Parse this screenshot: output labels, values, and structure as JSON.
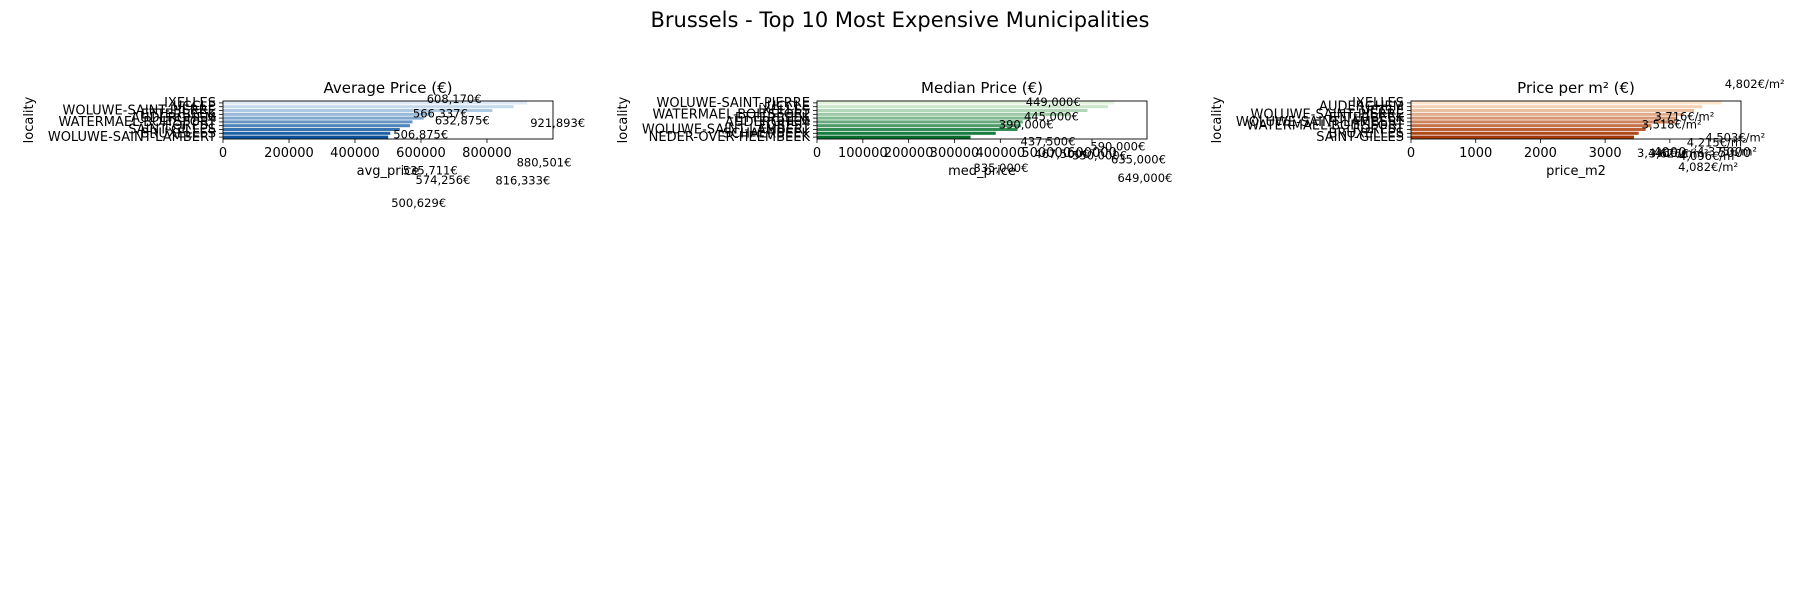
{
  "figure": {
    "suptitle": "Brussels - Top 10 Most Expensive Municipalities"
  },
  "chart_data": [
    {
      "type": "bar",
      "orientation": "horizontal",
      "title": "Average Price (€)",
      "xlabel": "avg_price",
      "ylabel": "locality",
      "xlim": [
        0,
        1000000
      ],
      "xticks": [
        "0",
        "200000",
        "400000",
        "600000",
        "800000"
      ],
      "palette": [
        "#deebf7",
        "#08519c"
      ],
      "grid": false,
      "categories": [
        "IXELLES",
        "UCCLE",
        "WOLUWE-SAINT-PIERRE",
        "ETTERBEEK",
        "AUDERGHEM",
        "WATERMAEL-BOITSFORT",
        "FOREST",
        "SAINT-GILLES",
        "BRUXELLES",
        "WOLUWE-SAINT-LAMBERT"
      ],
      "values": [
        921893,
        880501,
        816333,
        632875,
        608170,
        574256,
        566337,
        535711,
        506875,
        500629
      ],
      "value_labels": [
        "921,893€",
        "880,501€",
        "816,333€",
        "632,875€",
        "608,170€",
        "574,256€",
        "566,337€",
        "535,711€",
        "506,875€",
        "500,629€"
      ]
    },
    {
      "type": "bar",
      "orientation": "horizontal",
      "title": "Median Price (€)",
      "xlabel": "med_price",
      "ylabel": "locality",
      "xlim": [
        0,
        720000
      ],
      "xticks": [
        "0",
        "100000",
        "200000",
        "300000",
        "400000",
        "500000",
        "600000"
      ],
      "palette": [
        "#e5f5e0",
        "#006d2c"
      ],
      "grid": false,
      "categories": [
        "WOLUWE-SAINT-PIERRE",
        "UCCLE",
        "IXELLES",
        "WATERMAEL-BOITSFORT",
        "ETTERBEEK",
        "AUDERGHEM",
        "FOREST",
        "WOLUWE-SAINT-LAMBERT",
        "SCHAERBEEK",
        "NEDER-OVER-HEEMBEEK"
      ],
      "values": [
        649000,
        635000,
        590000,
        550000,
        467500,
        449000,
        445000,
        437500,
        390000,
        335000
      ],
      "value_labels": [
        "649,000€",
        "635,000€",
        "590,000€",
        "550,000€",
        "467,500€",
        "449,000€",
        "445,000€",
        "437,500€",
        "390,000€",
        "335,000€"
      ]
    },
    {
      "type": "bar",
      "orientation": "horizontal",
      "title": "Price per m² (€)",
      "xlabel": "price_m2",
      "ylabel": "locality",
      "xlim": [
        0,
        5100
      ],
      "xticks": [
        "0",
        "1000",
        "2000",
        "3000",
        "4000",
        "5000"
      ],
      "palette": [
        "#fee6ce",
        "#a63603"
      ],
      "grid": false,
      "categories": [
        "IXELLES",
        "AUDERGHEM",
        "UCCLE",
        "WOLUWE-SAINT-PIERRE",
        "ETTERBEEK",
        "WOLUWE-SAINT-LAMBERT",
        "WATERMAEL-BOITSFORT",
        "FOREST",
        "BRUXELLES",
        "SAINT-GILLES"
      ],
      "values": [
        4802,
        4503,
        4375,
        4215,
        4096,
        4082,
        3716,
        3626,
        3518,
        3446
      ],
      "value_labels": [
        "4,802€/m²",
        "4,503€/m²",
        "4,375€/m²",
        "4,215€/m²",
        "4,096€/m²",
        "4,082€/m²",
        "3,716€/m²",
        "3,626€/m²",
        "3,518€/m²",
        "3,446€/m²"
      ]
    }
  ]
}
